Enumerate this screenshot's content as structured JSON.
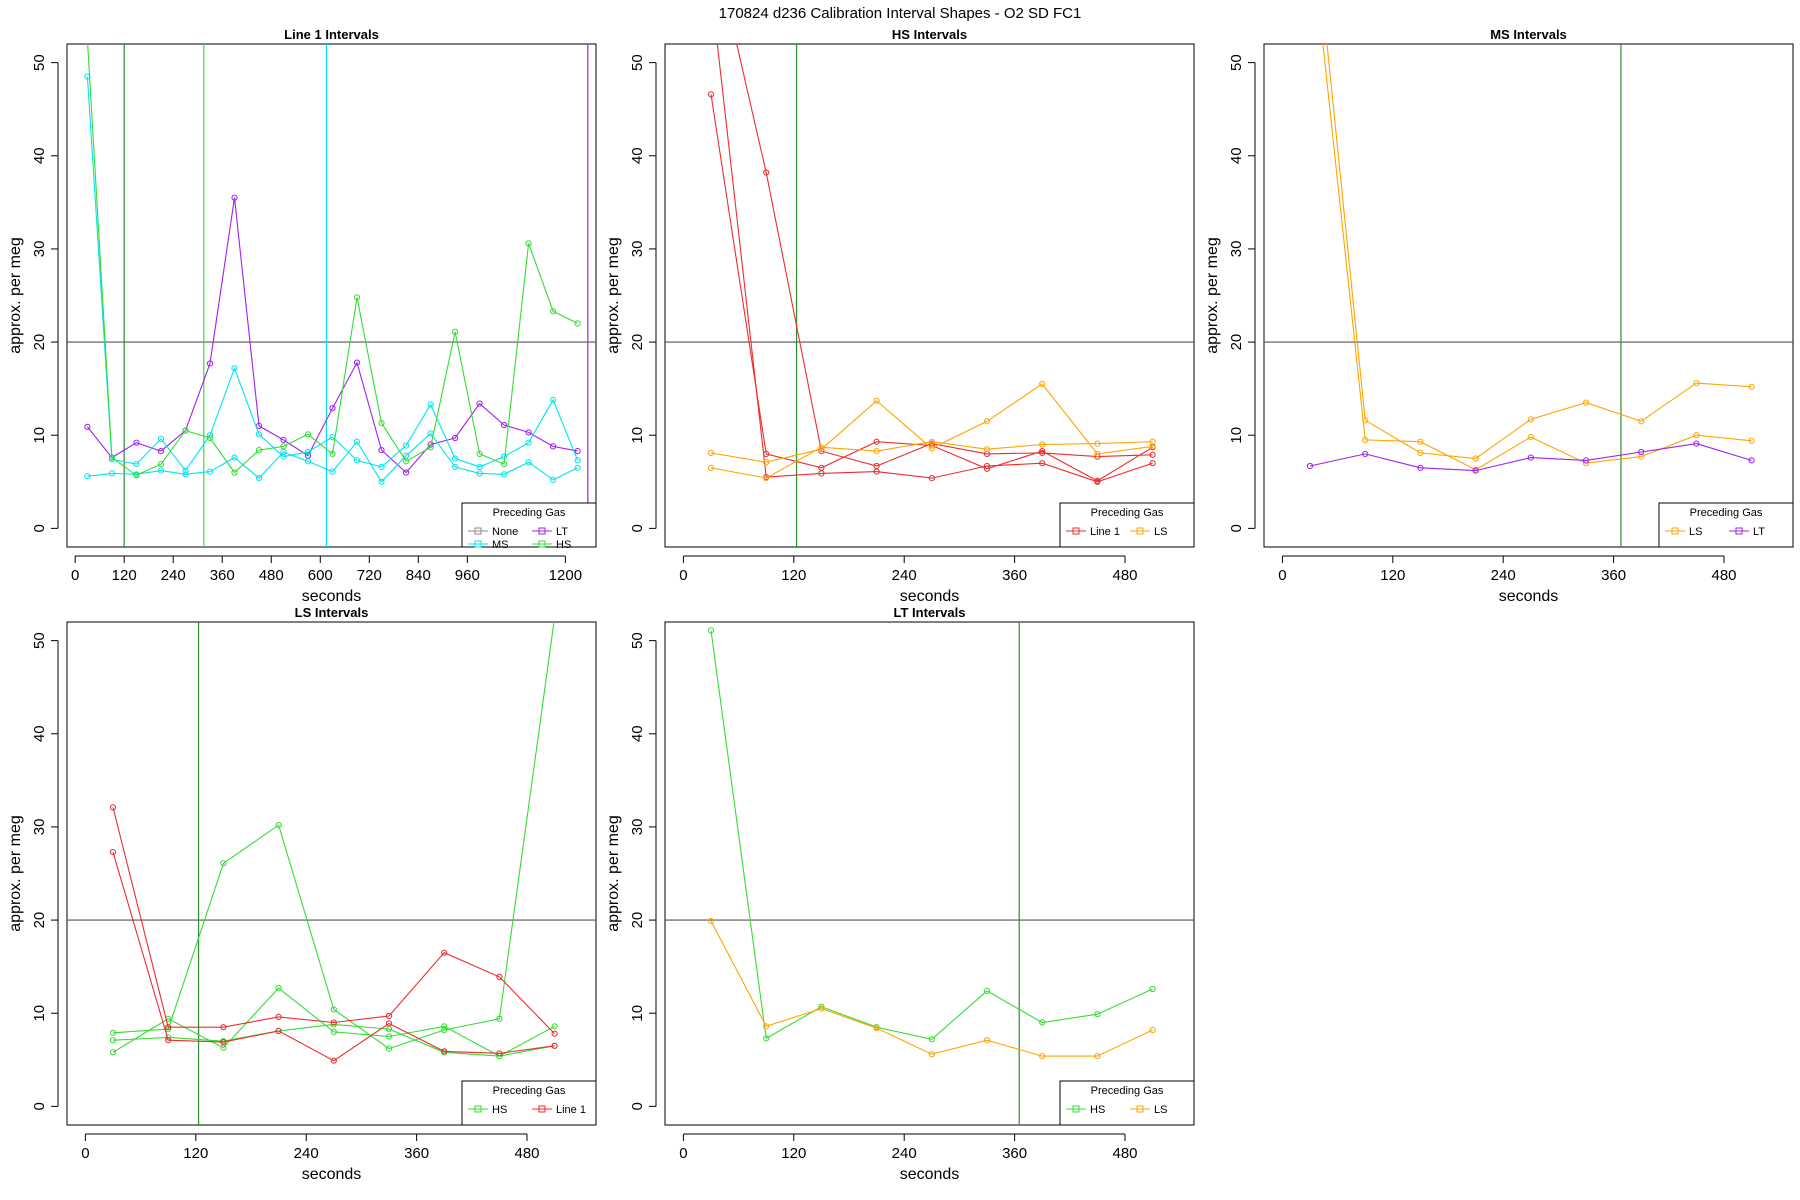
{
  "figure_title": "170824   d236   Calibration Interval Shapes - O2 SD FC1",
  "chart_data": [
    {
      "type": "line",
      "title": "Line 1 Intervals",
      "xlabel": "seconds",
      "ylabel": "approx. per meg",
      "xlim": [
        -20,
        1275
      ],
      "ylim": [
        -2,
        52
      ],
      "xticks": [
        0,
        120,
        240,
        360,
        480,
        600,
        720,
        840,
        960,
        1200
      ],
      "yticks": [
        0,
        10,
        20,
        30,
        40,
        50
      ],
      "hlines": [
        20
      ],
      "vlines": [
        {
          "x": 120,
          "color": "#2e8b2e"
        },
        {
          "x": 315,
          "color": "#33dd33"
        },
        {
          "x": 615,
          "color": "#00e5ee"
        },
        {
          "x": 1255,
          "color": "#a020f0"
        }
      ],
      "legend": {
        "title": "Preceding Gas",
        "position": "bottom-right",
        "columns": 2
      },
      "series": [
        {
          "name": "None",
          "color": "#888888",
          "points": []
        },
        {
          "name": "LT",
          "color": "#a020f0",
          "points": [
            [
              30,
              10.9
            ],
            [
              90,
              7.6
            ],
            [
              150,
              9.2
            ],
            [
              210,
              8.3
            ],
            [
              270,
              10.5
            ],
            [
              330,
              17.7
            ],
            [
              390,
              35.5
            ],
            [
              450,
              11.0
            ],
            [
              510,
              9.5
            ],
            [
              570,
              7.8
            ],
            [
              630,
              12.9
            ],
            [
              690,
              17.8
            ],
            [
              750,
              8.4
            ],
            [
              810,
              6.0
            ],
            [
              870,
              9.0
            ],
            [
              930,
              9.7
            ],
            [
              990,
              13.4
            ],
            [
              1050,
              11.1
            ],
            [
              1110,
              10.3
            ],
            [
              1170,
              8.8
            ],
            [
              1230,
              8.3
            ]
          ]
        },
        {
          "name": "MS",
          "color": "#00e5ee",
          "points": [
            [
              30,
              48.5
            ],
            [
              90,
              7.4
            ],
            [
              150,
              6.9
            ],
            [
              210,
              9.6
            ],
            [
              270,
              6.2
            ],
            [
              330,
              10.0
            ],
            [
              390,
              17.2
            ],
            [
              450,
              10.1
            ],
            [
              510,
              7.7
            ],
            [
              570,
              8.2
            ],
            [
              630,
              9.8
            ],
            [
              690,
              7.3
            ],
            [
              750,
              6.6
            ],
            [
              810,
              8.9
            ],
            [
              870,
              13.3
            ],
            [
              930,
              7.5
            ],
            [
              990,
              6.6
            ],
            [
              1050,
              7.7
            ],
            [
              1110,
              9.2
            ],
            [
              1170,
              13.8
            ],
            [
              1230,
              7.3
            ],
            [
              30,
              5.6
            ],
            [
              90,
              5.9
            ],
            [
              150,
              5.8
            ],
            [
              210,
              6.2
            ],
            [
              270,
              5.8
            ],
            [
              330,
              6.1
            ],
            [
              390,
              7.6
            ],
            [
              450,
              5.4
            ],
            [
              510,
              8.2
            ],
            [
              570,
              7.2
            ],
            [
              630,
              6.1
            ],
            [
              690,
              9.3
            ],
            [
              750,
              5.0
            ],
            [
              810,
              7.8
            ],
            [
              870,
              10.2
            ],
            [
              930,
              6.6
            ],
            [
              990,
              5.9
            ],
            [
              1050,
              5.8
            ],
            [
              1110,
              7.1
            ],
            [
              1170,
              5.2
            ],
            [
              1230,
              6.5
            ]
          ]
        },
        {
          "name": "HS",
          "color": "#33dd33",
          "points": [
            [
              30,
              52.5
            ],
            [
              90,
              7.6
            ],
            [
              150,
              5.7
            ],
            [
              210,
              6.9
            ],
            [
              270,
              10.5
            ],
            [
              330,
              9.7
            ],
            [
              390,
              6.0
            ],
            [
              450,
              8.4
            ],
            [
              510,
              8.8
            ],
            [
              570,
              10.1
            ],
            [
              630,
              8.0
            ],
            [
              690,
              24.8
            ],
            [
              750,
              11.3
            ],
            [
              810,
              7.2
            ],
            [
              870,
              8.7
            ],
            [
              930,
              21.1
            ],
            [
              990,
              8.0
            ],
            [
              1050,
              6.9
            ],
            [
              1110,
              30.6
            ],
            [
              1170,
              23.3
            ],
            [
              1230,
              22.0
            ]
          ]
        }
      ]
    },
    {
      "type": "line",
      "title": "HS Intervals",
      "xlabel": "seconds",
      "ylabel": "approx. per meg",
      "xlim": [
        -20,
        555
      ],
      "ylim": [
        -2,
        52
      ],
      "xticks": [
        0,
        120,
        240,
        360,
        480
      ],
      "yticks": [
        0,
        10,
        20,
        30,
        40,
        50
      ],
      "hlines": [
        20
      ],
      "vlines": [
        {
          "x": 123,
          "color": "#2e8b2e"
        }
      ],
      "legend": {
        "title": "Preceding Gas",
        "position": "bottom-right",
        "columns": 2
      },
      "series": [
        {
          "name": "Line 1",
          "color": "#ee2c2c",
          "points": [
            [
              30,
              46.6
            ],
            [
              90,
              8.0
            ],
            [
              150,
              6.5
            ],
            [
              210,
              9.3
            ],
            [
              270,
              8.9
            ],
            [
              330,
              6.4
            ],
            [
              390,
              8.3
            ],
            [
              450,
              5.1
            ],
            [
              510,
              8.7
            ],
            [
              30,
              64.0
            ],
            [
              90,
              38.2
            ],
            [
              150,
              8.3
            ],
            [
              210,
              6.7
            ],
            [
              270,
              9.1
            ],
            [
              330,
              8.0
            ],
            [
              390,
              8.1
            ],
            [
              450,
              7.7
            ],
            [
              510,
              7.9
            ],
            [
              30,
              58.0
            ],
            [
              90,
              5.5
            ],
            [
              150,
              5.9
            ],
            [
              210,
              6.1
            ],
            [
              270,
              5.4
            ],
            [
              330,
              6.7
            ],
            [
              390,
              7.0
            ],
            [
              450,
              5.0
            ],
            [
              510,
              7.0
            ]
          ]
        },
        {
          "name": "LS",
          "color": "#ffa500",
          "points": [
            [
              30,
              8.1
            ],
            [
              90,
              7.1
            ],
            [
              150,
              8.5
            ],
            [
              210,
              13.7
            ],
            [
              270,
              8.6
            ],
            [
              330,
              11.5
            ],
            [
              390,
              15.5
            ],
            [
              450,
              8.0
            ],
            [
              510,
              8.8
            ],
            [
              30,
              6.5
            ],
            [
              90,
              5.4
            ],
            [
              150,
              8.7
            ],
            [
              210,
              8.3
            ],
            [
              270,
              9.3
            ],
            [
              330,
              8.5
            ],
            [
              390,
              9.0
            ],
            [
              450,
              9.1
            ],
            [
              510,
              9.3
            ]
          ]
        }
      ]
    },
    {
      "type": "line",
      "title": "MS Intervals",
      "xlabel": "seconds",
      "ylabel": "approx. per meg",
      "xlim": [
        -20,
        555
      ],
      "ylim": [
        -2,
        52
      ],
      "xticks": [
        0,
        120,
        240,
        360,
        480
      ],
      "yticks": [
        0,
        10,
        20,
        30,
        40,
        50
      ],
      "hlines": [
        20
      ],
      "vlines": [
        {
          "x": 368,
          "color": "#2e8b2e"
        }
      ],
      "legend": {
        "title": "Preceding Gas",
        "position": "bottom-right",
        "columns": 2
      },
      "series": [
        {
          "name": "LS",
          "color": "#ffa500",
          "points": [
            [
              30,
              70.0
            ],
            [
              90,
              11.6
            ],
            [
              150,
              8.1
            ],
            [
              210,
              7.5
            ],
            [
              270,
              11.7
            ],
            [
              330,
              13.5
            ],
            [
              390,
              11.5
            ],
            [
              450,
              15.6
            ],
            [
              510,
              15.2
            ],
            [
              30,
              65.0
            ],
            [
              90,
              9.5
            ],
            [
              150,
              9.3
            ],
            [
              210,
              6.3
            ],
            [
              270,
              9.8
            ],
            [
              330,
              7.0
            ],
            [
              390,
              7.7
            ],
            [
              450,
              10.0
            ],
            [
              510,
              9.4
            ]
          ]
        },
        {
          "name": "LT",
          "color": "#a020f0",
          "points": [
            [
              30,
              6.7
            ],
            [
              90,
              8.0
            ],
            [
              150,
              6.5
            ],
            [
              210,
              6.2
            ],
            [
              270,
              7.6
            ],
            [
              330,
              7.3
            ],
            [
              390,
              8.2
            ],
            [
              450,
              9.1
            ],
            [
              510,
              7.3
            ]
          ]
        }
      ]
    },
    {
      "type": "line",
      "title": "LS Intervals",
      "xlabel": "seconds",
      "ylabel": "approx. per meg",
      "xlim": [
        -20,
        555
      ],
      "ylim": [
        -2,
        52
      ],
      "xticks": [
        0,
        120,
        240,
        360,
        480
      ],
      "yticks": [
        0,
        10,
        20,
        30,
        40,
        50
      ],
      "hlines": [
        20
      ],
      "vlines": [
        {
          "x": 123,
          "color": "#2e8b2e"
        }
      ],
      "legend": {
        "title": "Preceding Gas",
        "position": "bottom-right",
        "columns": 2
      },
      "series": [
        {
          "name": "HS",
          "color": "#33dd33",
          "points": [
            [
              30,
              7.9
            ],
            [
              90,
              8.3
            ],
            [
              150,
              26.1
            ],
            [
              210,
              30.2
            ],
            [
              270,
              10.4
            ],
            [
              330,
              6.2
            ],
            [
              390,
              8.2
            ],
            [
              450,
              9.4
            ],
            [
              510,
              52.5
            ],
            [
              30,
              5.8
            ],
            [
              90,
              9.4
            ],
            [
              150,
              6.3
            ],
            [
              210,
              12.7
            ],
            [
              270,
              8.0
            ],
            [
              330,
              7.5
            ],
            [
              390,
              8.6
            ],
            [
              450,
              5.4
            ],
            [
              510,
              8.6
            ],
            [
              30,
              7.1
            ],
            [
              90,
              7.4
            ],
            [
              150,
              7.0
            ],
            [
              210,
              8.1
            ],
            [
              270,
              8.8
            ],
            [
              330,
              8.3
            ],
            [
              390,
              5.8
            ],
            [
              450,
              5.4
            ],
            [
              510,
              6.5
            ]
          ]
        },
        {
          "name": "Line 1",
          "color": "#ee2c2c",
          "points": [
            [
              30,
              32.1
            ],
            [
              90,
              8.5
            ],
            [
              150,
              8.5
            ],
            [
              210,
              9.6
            ],
            [
              270,
              9.0
            ],
            [
              330,
              9.7
            ],
            [
              390,
              16.5
            ],
            [
              450,
              13.9
            ],
            [
              510,
              7.8
            ],
            [
              30,
              27.3
            ],
            [
              90,
              7.1
            ],
            [
              150,
              6.9
            ],
            [
              210,
              8.1
            ],
            [
              270,
              4.9
            ],
            [
              330,
              8.9
            ],
            [
              390,
              5.9
            ],
            [
              450,
              5.7
            ],
            [
              510,
              6.5
            ]
          ]
        }
      ]
    },
    {
      "type": "line",
      "title": "LT Intervals",
      "xlabel": "seconds",
      "ylabel": "approx. per meg",
      "xlim": [
        -20,
        555
      ],
      "ylim": [
        -2,
        52
      ],
      "xticks": [
        0,
        120,
        240,
        360,
        480
      ],
      "yticks": [
        0,
        10,
        20,
        30,
        40,
        50
      ],
      "hlines": [
        20
      ],
      "vlines": [
        {
          "x": 365,
          "color": "#2e8b2e"
        }
      ],
      "legend": {
        "title": "Preceding Gas",
        "position": "bottom-right",
        "columns": 2
      },
      "series": [
        {
          "name": "HS",
          "color": "#33dd33",
          "points": [
            [
              30,
              51.1
            ],
            [
              90,
              7.3
            ],
            [
              150,
              10.7
            ],
            [
              210,
              8.5
            ],
            [
              270,
              7.2
            ],
            [
              330,
              12.4
            ],
            [
              390,
              9.0
            ],
            [
              450,
              9.9
            ],
            [
              510,
              12.6
            ]
          ]
        },
        {
          "name": "LS",
          "color": "#ffa500",
          "points": [
            [
              30,
              19.9
            ],
            [
              90,
              8.6
            ],
            [
              150,
              10.5
            ],
            [
              210,
              8.4
            ],
            [
              270,
              5.6
            ],
            [
              330,
              7.1
            ],
            [
              390,
              5.4
            ],
            [
              450,
              5.4
            ],
            [
              510,
              8.2
            ]
          ]
        }
      ]
    }
  ]
}
